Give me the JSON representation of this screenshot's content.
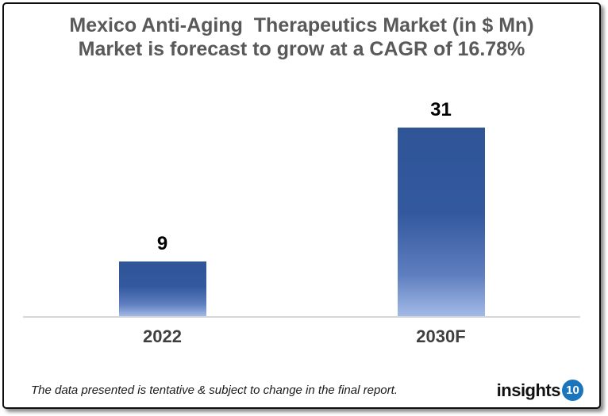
{
  "chart_data": {
    "type": "bar",
    "title": "Mexico Anti-Aging  Therapeutics Market (in $ Mn)",
    "subtitle": "Market is forecast to grow at a CAGR of 16.78%",
    "categories": [
      "2022",
      "2030F"
    ],
    "values": [
      9,
      31
    ],
    "data_labels": [
      "9",
      "31"
    ],
    "xlabel": "",
    "ylabel": "",
    "ylim": [
      0,
      39
    ],
    "grid": false,
    "legend": false,
    "bar_color_top": "#2F5597",
    "bar_color_bottom": "#A2BAE6",
    "axis_line_color": "#D6D6D6",
    "title_color": "#595959"
  },
  "footer": {
    "disclaimer": "The data presented is tentative & subject to change in the final report.",
    "logo_text": "insights",
    "logo_badge": "10",
    "logo_badge_color": "#1B75BC"
  }
}
